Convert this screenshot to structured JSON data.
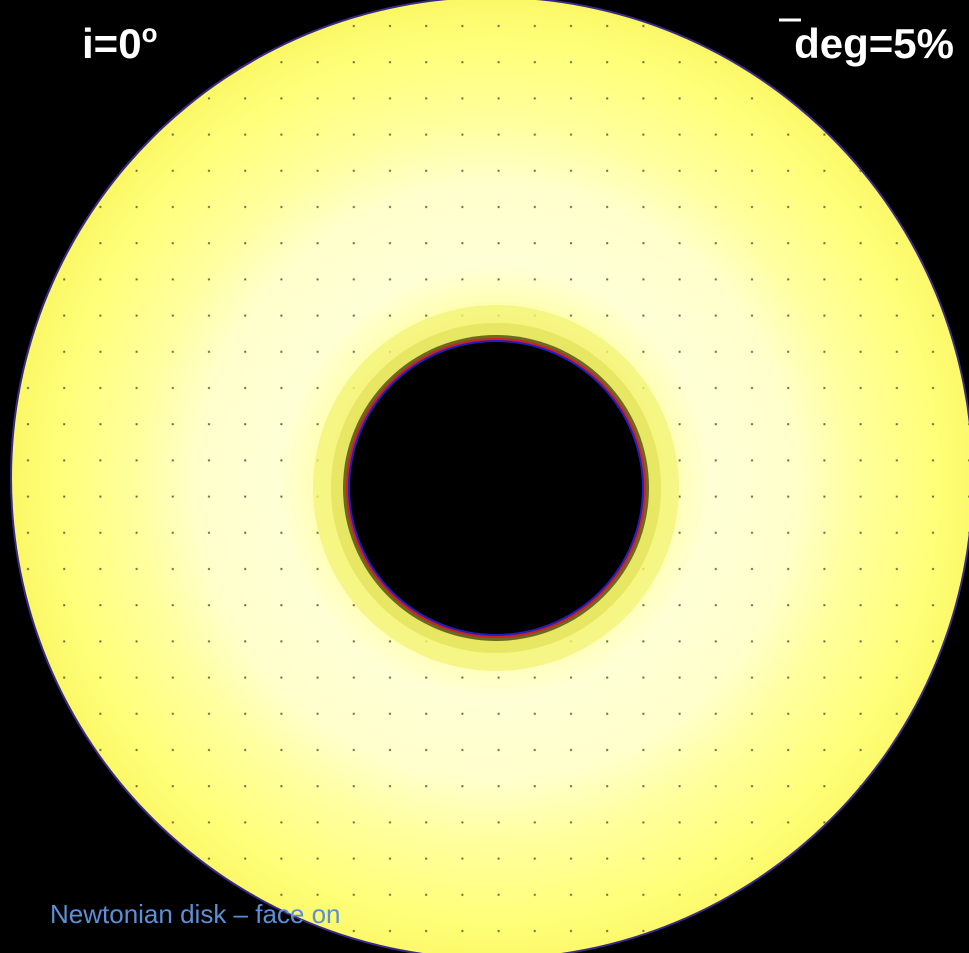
{
  "labels": {
    "inclination": {
      "text": "i=0",
      "superscript": "o"
    },
    "degree": "deg=5%",
    "caption": "Newtonian disk – face on"
  }
}
